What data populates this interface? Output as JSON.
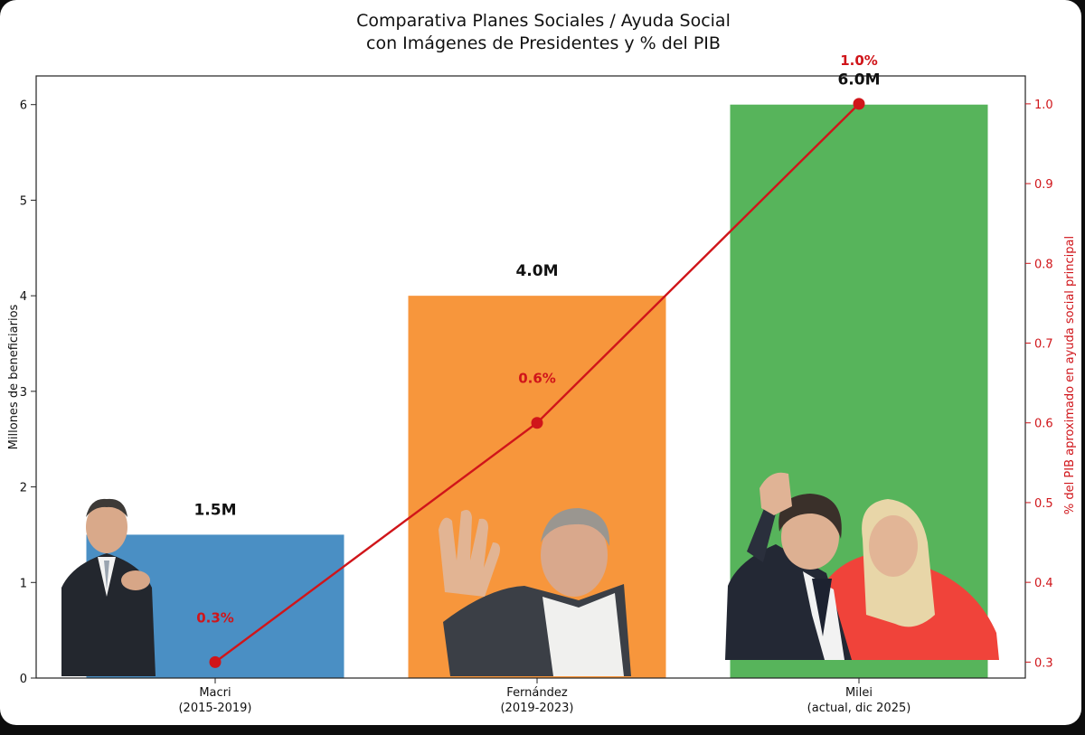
{
  "chart_data": {
    "type": "bar",
    "title_lines": [
      "Comparativa Planes Sociales / Ayuda Social",
      "con Imágenes de Presidentes y % del PIB"
    ],
    "categories": [
      {
        "name": "Macri",
        "period": "(2015-2019)"
      },
      {
        "name": "Fernández",
        "period": "(2019-2023)"
      },
      {
        "name": "Milei",
        "period": "(actual, dic 2025)"
      }
    ],
    "values": [
      1.5,
      4.0,
      6.0
    ],
    "bar_labels": [
      "1.5M",
      "4.0M",
      "6.0M"
    ],
    "bar_colors": [
      "#4a8fc4",
      "#f7963c",
      "#57b45b"
    ],
    "ylabel": "Millones de beneficiarios",
    "ylim": [
      0,
      6.3
    ],
    "yticks": [
      "0",
      "1",
      "2",
      "3",
      "4",
      "5",
      "6"
    ],
    "secondary": {
      "type": "line",
      "values": [
        0.3,
        0.6,
        1.0
      ],
      "point_labels": [
        "0.3%",
        "0.6%",
        "1.0%"
      ],
      "color": "#d0151a",
      "ylabel": "% del PIB aproximado en ayuda social principal",
      "ylim": [
        0.28,
        1.035
      ],
      "yticks": [
        "0.3",
        "0.4",
        "0.5",
        "0.6",
        "0.7",
        "0.8",
        "0.9",
        "1.0"
      ]
    },
    "grid": false
  }
}
